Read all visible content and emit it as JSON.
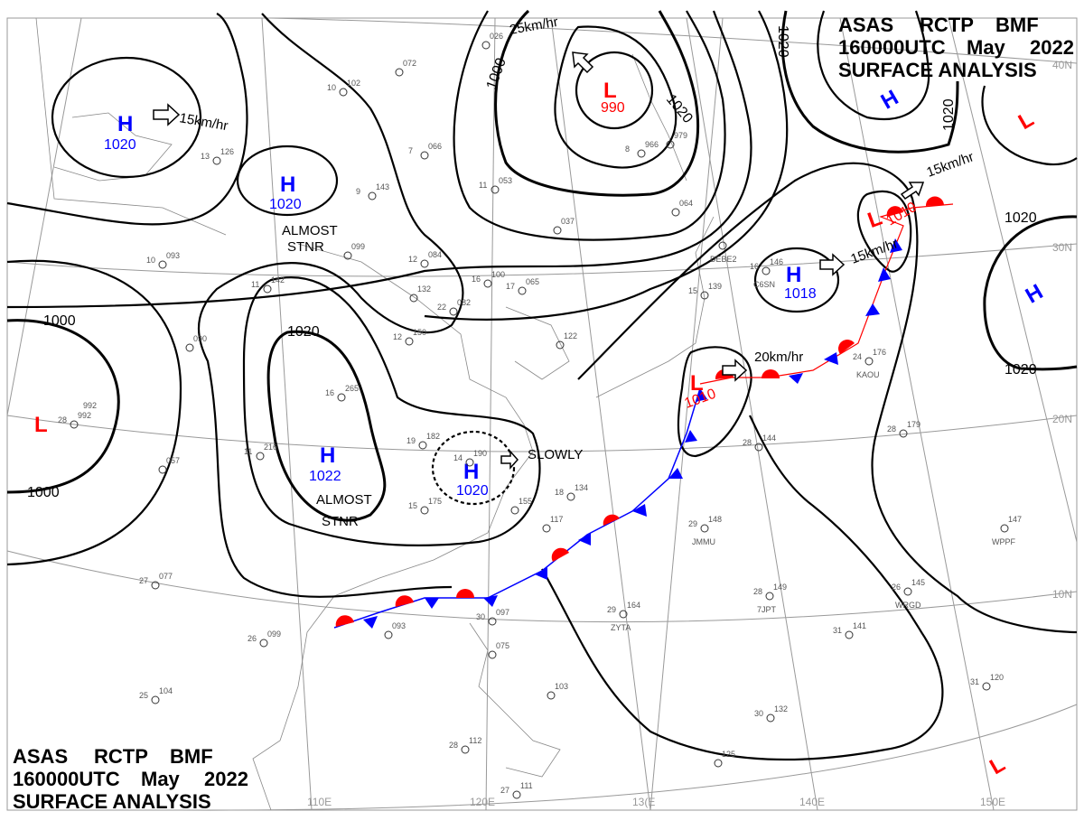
{
  "header_top": {
    "line1": [
      "ASAS",
      "RCTP",
      "BMF"
    ],
    "line2": [
      "160000UTC",
      "May",
      "2022"
    ],
    "line3": "SURFACE ANALYSIS"
  },
  "header_bottom": {
    "line1": [
      "ASAS",
      "RCTP",
      "BMF"
    ],
    "line2": [
      "160000UTC",
      "May",
      "2022"
    ],
    "line3": "SURFACE ANALYSIS"
  },
  "colors": {
    "high": "#0000ff",
    "low": "#ff0000",
    "isobar": "#000000",
    "grid": "#999999",
    "cold_front": "#0000ff",
    "warm_front": "#ff0000"
  },
  "grid_labels": {
    "lat": [
      "40N",
      "30N",
      "20N",
      "10N"
    ],
    "lon": [
      "110E",
      "120E",
      "13(E",
      "140E",
      "150E"
    ]
  },
  "pressure_centers": [
    {
      "type": "H",
      "value": "1020"
    },
    {
      "type": "H",
      "value": "1020"
    },
    {
      "type": "L",
      "value": "992"
    },
    {
      "type": "H",
      "value": "1022"
    },
    {
      "type": "H",
      "value": "1020"
    },
    {
      "type": "L",
      "value": "990"
    },
    {
      "type": "H",
      "value": ""
    },
    {
      "type": "L",
      "value": ""
    },
    {
      "type": "L",
      "value": "1010"
    },
    {
      "type": "H",
      "value": "1018"
    },
    {
      "type": "L",
      "value": "1010"
    },
    {
      "type": "H",
      "value": ""
    },
    {
      "type": "L",
      "value": ""
    }
  ],
  "isobar_labels": [
    "1000",
    "1000",
    "1000",
    "1020",
    "1020",
    "1020",
    "1020",
    "1020",
    "1020"
  ],
  "motion_labels": [
    "15km/hr",
    "ALMOST\nSTNR",
    "ALMOST",
    "STNR",
    "ALMOST",
    "STNR",
    "SLOWLY",
    "25km/hr",
    "20km/hr",
    "15km/hr",
    "15km/hr"
  ],
  "motion": {
    "h_nw": "15km/hr",
    "h_small_1": "ALMOST",
    "h_small_2": "STNR",
    "h_1022_1": "ALMOST",
    "h_1022_2": "STNR",
    "h_china": "SLOWLY",
    "l_990": "25km/hr",
    "l_1010_s": "20km/hr",
    "h_1018": "15km/hr",
    "l_1010_n": "15km/hr"
  },
  "stations": [
    {
      "id": "DEBE2",
      "t": "",
      "p": ""
    },
    {
      "id": "C6SN",
      "t": "16",
      "p": "146"
    },
    {
      "id": "KAOU",
      "t": "24",
      "p": "176"
    },
    {
      "id": "JMMU",
      "t": "29",
      "p": "148"
    },
    {
      "id": "7JPT",
      "t": "28",
      "p": "149"
    },
    {
      "id": "ZYTA",
      "t": "29",
      "p": "164"
    },
    {
      "id": "WRGD",
      "t": "26",
      "p": "145"
    },
    {
      "id": "WPPF",
      "t": "",
      "p": "147"
    },
    {
      "id": "",
      "t": "31",
      "p": "141"
    },
    {
      "id": "",
      "t": "28",
      "p": "179"
    },
    {
      "id": "",
      "t": "28",
      "p": "144"
    },
    {
      "id": "",
      "t": "25",
      "p": "104"
    },
    {
      "id": "",
      "t": "27",
      "p": "077"
    },
    {
      "id": "",
      "t": "26",
      "p": "099"
    },
    {
      "id": "",
      "t": "28",
      "p": "992"
    },
    {
      "id": "",
      "t": "",
      "p": "057"
    },
    {
      "id": "",
      "t": "",
      "p": "090"
    },
    {
      "id": "",
      "t": "16",
      "p": "265"
    },
    {
      "id": "",
      "t": "11",
      "p": "216"
    },
    {
      "id": "",
      "t": "19",
      "p": "182"
    },
    {
      "id": "",
      "t": "15",
      "p": "175"
    },
    {
      "id": "",
      "t": "14",
      "p": "190"
    },
    {
      "id": "",
      "t": "18",
      "p": "134"
    },
    {
      "id": "",
      "t": "",
      "p": "155"
    },
    {
      "id": "",
      "t": "",
      "p": "117"
    },
    {
      "id": "",
      "t": "",
      "p": "093"
    },
    {
      "id": "",
      "t": "30",
      "p": "097"
    },
    {
      "id": "",
      "t": "",
      "p": "075"
    },
    {
      "id": "",
      "t": "",
      "p": "103"
    },
    {
      "id": "",
      "t": "28",
      "p": "112"
    },
    {
      "id": "",
      "t": "27",
      "p": "111"
    },
    {
      "id": "",
      "t": "",
      "p": "125"
    },
    {
      "id": "",
      "t": "30",
      "p": "132"
    },
    {
      "id": "",
      "t": "31",
      "p": "120"
    },
    {
      "id": "",
      "t": "12",
      "p": "150"
    },
    {
      "id": "",
      "t": "12",
      "p": "084"
    },
    {
      "id": "",
      "t": "",
      "p": "132"
    },
    {
      "id": "",
      "t": "22",
      "p": "082"
    },
    {
      "id": "",
      "t": "17",
      "p": "065"
    },
    {
      "id": "",
      "t": "16",
      "p": "100"
    },
    {
      "id": "",
      "t": "",
      "p": "037"
    },
    {
      "id": "",
      "t": "11",
      "p": "053"
    },
    {
      "id": "",
      "t": "7",
      "p": "066"
    },
    {
      "id": "",
      "t": "9",
      "p": "143"
    },
    {
      "id": "",
      "t": "10",
      "p": "102"
    },
    {
      "id": "",
      "t": "",
      "p": "072"
    },
    {
      "id": "",
      "t": "",
      "p": "026"
    },
    {
      "id": "",
      "t": "8",
      "p": "966"
    },
    {
      "id": "",
      "t": "",
      "p": "979"
    },
    {
      "id": "",
      "t": "15",
      "p": "139"
    },
    {
      "id": "",
      "t": "13",
      "p": "126"
    },
    {
      "id": "",
      "t": "10",
      "p": "093"
    },
    {
      "id": "",
      "t": "",
      "p": "099"
    },
    {
      "id": "",
      "t": "11",
      "p": "142"
    },
    {
      "id": "",
      "t": "",
      "p": "122"
    },
    {
      "id": "",
      "t": "",
      "p": "064"
    }
  ]
}
